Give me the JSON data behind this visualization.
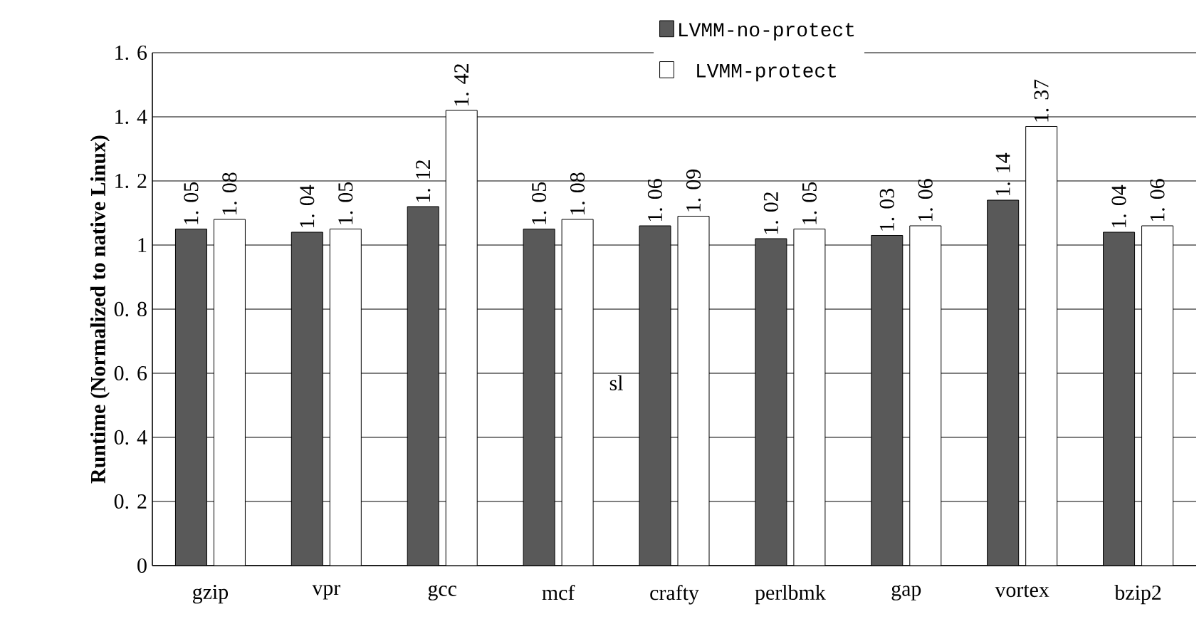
{
  "chart_data": {
    "type": "bar",
    "ylabel": "Runtime (Normalized to native Linux)",
    "categories": [
      "gzip",
      "vpr",
      "gcc",
      "mcf",
      "crafty",
      "perlbmk",
      "gap",
      "vortex",
      "bzip2"
    ],
    "series": [
      {
        "name": "LVMM-no-protect",
        "color": "#595959",
        "values": [
          1.05,
          1.04,
          1.12,
          1.05,
          1.06,
          1.02,
          1.03,
          1.14,
          1.04
        ],
        "value_labels": [
          "1. 05",
          "1. 04",
          "1. 12",
          "1. 05",
          "1. 06",
          "1. 02",
          "1. 03",
          "1. 14",
          "1. 04"
        ]
      },
      {
        "name": "LVMM-protect",
        "color": "#ffffff",
        "values": [
          1.08,
          1.05,
          1.42,
          1.08,
          1.09,
          1.05,
          1.06,
          1.37,
          1.06
        ],
        "value_labels": [
          "1. 08",
          "1. 05",
          "1. 42",
          "1. 08",
          "1. 09",
          "1. 05",
          "1. 06",
          "1. 37",
          "1. 06"
        ]
      }
    ],
    "ylim": [
      0,
      1.6
    ],
    "yticks": [
      0,
      {
        "value": 0.2,
        "label": "0. 2"
      },
      {
        "value": 0.4,
        "label": "0. 4"
      },
      {
        "value": 0.6,
        "label": "0. 6"
      },
      {
        "value": 0.8,
        "label": "0. 8"
      },
      1,
      {
        "value": 1.2,
        "label": "1. 2"
      },
      {
        "value": 1.4,
        "label": "1. 4"
      },
      {
        "value": 1.6,
        "label": "1. 6"
      }
    ],
    "grid": "y",
    "legend": "top",
    "annotations": [
      "sl"
    ]
  }
}
